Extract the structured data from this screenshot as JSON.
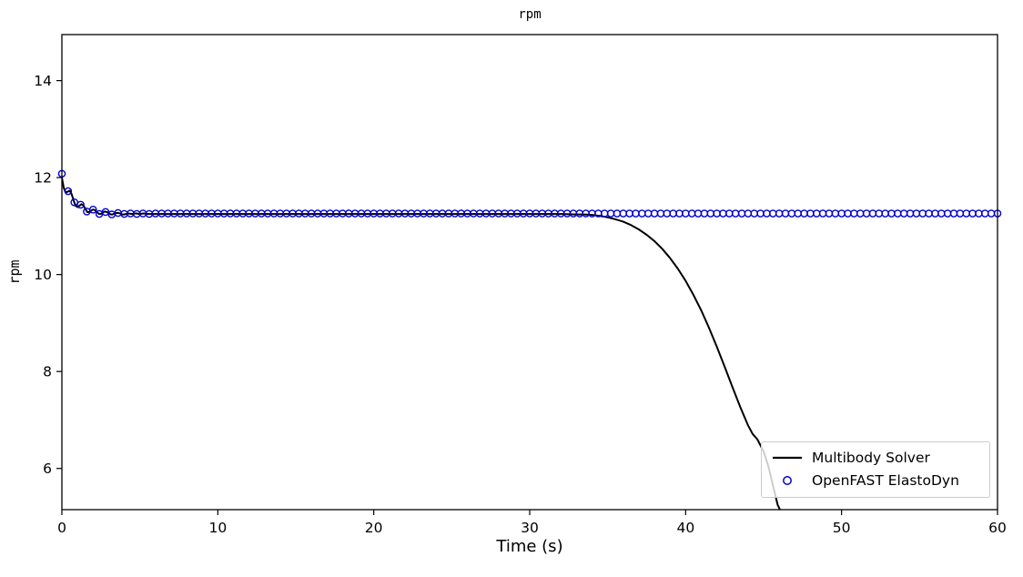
{
  "chart_data": {
    "type": "line",
    "title": "rpm",
    "xlabel": "Time (s)",
    "ylabel": "rpm",
    "xlim": [
      0,
      60
    ],
    "ylim": [
      5.15,
      14.95
    ],
    "xticks": [
      0,
      10,
      20,
      30,
      40,
      50,
      60
    ],
    "yticks": [
      6,
      8,
      10,
      12,
      14
    ],
    "grid": false,
    "legend": {
      "position": "lower right",
      "edge_color": "#cccccc",
      "face_color": "rgba(255,255,255,0.8)"
    },
    "series": [
      {
        "name": "Multibody Solver",
        "style": "line",
        "color": "#000000",
        "line_width": 2,
        "x": [
          0,
          0.125,
          0.25,
          0.375,
          0.5,
          0.625,
          0.75,
          0.875,
          1,
          1.125,
          1.25,
          1.375,
          1.5,
          1.625,
          1.75,
          1.875,
          2,
          2.125,
          2.25,
          2.375,
          2.5,
          2.625,
          2.75,
          2.875,
          3,
          3.125,
          3.25,
          3.375,
          3.5,
          3.625,
          3.75,
          3.875,
          4,
          4.25,
          4.5,
          4.75,
          5,
          5.25,
          5.5,
          5.75,
          6,
          6.5,
          7,
          7.5,
          8,
          9,
          10,
          11,
          12,
          13,
          14,
          15,
          16,
          17,
          18,
          19,
          20,
          21,
          22,
          23,
          24,
          25,
          26,
          27,
          28,
          29,
          30,
          31,
          32,
          33,
          33.5,
          34,
          34.5,
          35,
          35.5,
          36,
          36.5,
          37,
          37.5,
          38,
          38.5,
          39,
          39.5,
          40,
          40.5,
          41,
          41.5,
          42,
          42.5,
          43,
          43.5,
          44,
          44.3,
          44.6,
          45,
          45.3,
          45.6,
          45.9,
          46.05
        ],
        "y": [
          12.0,
          11.78,
          11.69,
          11.71,
          11.73,
          11.66,
          11.53,
          11.42,
          11.39,
          11.42,
          11.45,
          11.43,
          11.36,
          11.29,
          11.29,
          11.32,
          11.34,
          11.33,
          11.29,
          11.25,
          11.25,
          11.28,
          11.3,
          11.29,
          11.27,
          11.24,
          11.24,
          11.26,
          11.27,
          11.27,
          11.26,
          11.24,
          11.24,
          11.26,
          11.25,
          11.26,
          11.25,
          11.26,
          11.25,
          11.25,
          11.25,
          11.25,
          11.25,
          11.25,
          11.25,
          11.25,
          11.25,
          11.25,
          11.25,
          11.25,
          11.25,
          11.25,
          11.25,
          11.25,
          11.25,
          11.25,
          11.25,
          11.25,
          11.25,
          11.25,
          11.25,
          11.25,
          11.25,
          11.25,
          11.25,
          11.25,
          11.25,
          11.25,
          11.25,
          11.24,
          11.24,
          11.23,
          11.21,
          11.18,
          11.14,
          11.09,
          11.02,
          10.93,
          10.82,
          10.69,
          10.53,
          10.34,
          10.12,
          9.87,
          9.58,
          9.26,
          8.9,
          8.51,
          8.1,
          7.68,
          7.27,
          6.89,
          6.71,
          6.6,
          6.35,
          6.05,
          5.65,
          5.25,
          5.15
        ]
      },
      {
        "name": "OpenFAST ElastoDyn",
        "style": "scatter",
        "marker": "open-circle",
        "color": "#0000cd",
        "marker_size": 3.6,
        "x": [
          0,
          0.4,
          0.8,
          1.2,
          1.6,
          2,
          2.4,
          2.8,
          3.2,
          3.6,
          4,
          4.4,
          4.8,
          5.2,
          5.6,
          6,
          6.4,
          6.8,
          7.2,
          7.6,
          8,
          8.4,
          8.8,
          9.2,
          9.6,
          10,
          10.4,
          10.8,
          11.2,
          11.6,
          12,
          12.4,
          12.8,
          13.2,
          13.6,
          14,
          14.4,
          14.8,
          15.2,
          15.6,
          16,
          16.4,
          16.8,
          17.2,
          17.6,
          18,
          18.4,
          18.8,
          19.2,
          19.6,
          20,
          20.4,
          20.8,
          21.2,
          21.6,
          22,
          22.4,
          22.8,
          23.2,
          23.6,
          24,
          24.4,
          24.8,
          25.2,
          25.6,
          26,
          26.4,
          26.8,
          27.2,
          27.6,
          28,
          28.4,
          28.8,
          29.2,
          29.6,
          30,
          30.4,
          30.8,
          31.2,
          31.6,
          32,
          32.4,
          32.8,
          33.2,
          33.6,
          34,
          34.4,
          34.8,
          35.2,
          35.6,
          36,
          36.4,
          36.8,
          37.2,
          37.6,
          38,
          38.4,
          38.8,
          39.2,
          39.6,
          40,
          40.4,
          40.8,
          41.2,
          41.6,
          42,
          42.4,
          42.8,
          43.2,
          43.6,
          44,
          44.4,
          44.8,
          45.2,
          45.6,
          46,
          46.4,
          46.8,
          47.2,
          47.6,
          48,
          48.4,
          48.8,
          49.2,
          49.6,
          50,
          50.4,
          50.8,
          51.2,
          51.6,
          52,
          52.4,
          52.8,
          53.2,
          53.6,
          54,
          54.4,
          54.8,
          55.2,
          55.6,
          56,
          56.4,
          56.8,
          57.2,
          57.6,
          58,
          58.4,
          58.8,
          59.2,
          59.6,
          60
        ],
        "y": [
          12.08,
          11.72,
          11.49,
          11.44,
          11.3,
          11.34,
          11.25,
          11.29,
          11.24,
          11.27,
          11.25,
          11.26,
          11.25,
          11.26,
          11.25,
          11.26,
          11.26,
          11.26,
          11.26,
          11.26,
          11.26,
          11.26,
          11.26,
          11.26,
          11.26,
          11.26,
          11.26,
          11.26,
          11.26,
          11.26,
          11.26,
          11.26,
          11.26,
          11.26,
          11.26,
          11.26,
          11.26,
          11.26,
          11.26,
          11.26,
          11.26,
          11.26,
          11.26,
          11.26,
          11.26,
          11.26,
          11.26,
          11.26,
          11.26,
          11.26,
          11.26,
          11.26,
          11.26,
          11.26,
          11.26,
          11.26,
          11.26,
          11.26,
          11.26,
          11.26,
          11.26,
          11.26,
          11.26,
          11.26,
          11.26,
          11.26,
          11.26,
          11.26,
          11.26,
          11.26,
          11.26,
          11.26,
          11.26,
          11.26,
          11.26,
          11.26,
          11.26,
          11.26,
          11.26,
          11.26,
          11.26,
          11.26,
          11.26,
          11.26,
          11.26,
          11.26,
          11.26,
          11.26,
          11.26,
          11.26,
          11.26,
          11.26,
          11.26,
          11.26,
          11.26,
          11.26,
          11.26,
          11.26,
          11.26,
          11.26,
          11.26,
          11.26,
          11.26,
          11.26,
          11.26,
          11.26,
          11.26,
          11.26,
          11.26,
          11.26,
          11.26,
          11.26,
          11.26,
          11.26,
          11.26,
          11.26,
          11.26,
          11.26,
          11.26,
          11.26,
          11.26,
          11.26,
          11.26,
          11.26,
          11.26,
          11.26,
          11.26,
          11.26,
          11.26,
          11.26,
          11.26,
          11.26,
          11.26,
          11.26,
          11.26,
          11.26,
          11.26,
          11.26,
          11.26,
          11.26,
          11.26,
          11.26,
          11.26,
          11.26,
          11.26,
          11.26,
          11.26,
          11.26,
          11.26,
          11.26,
          11.26
        ]
      }
    ]
  }
}
